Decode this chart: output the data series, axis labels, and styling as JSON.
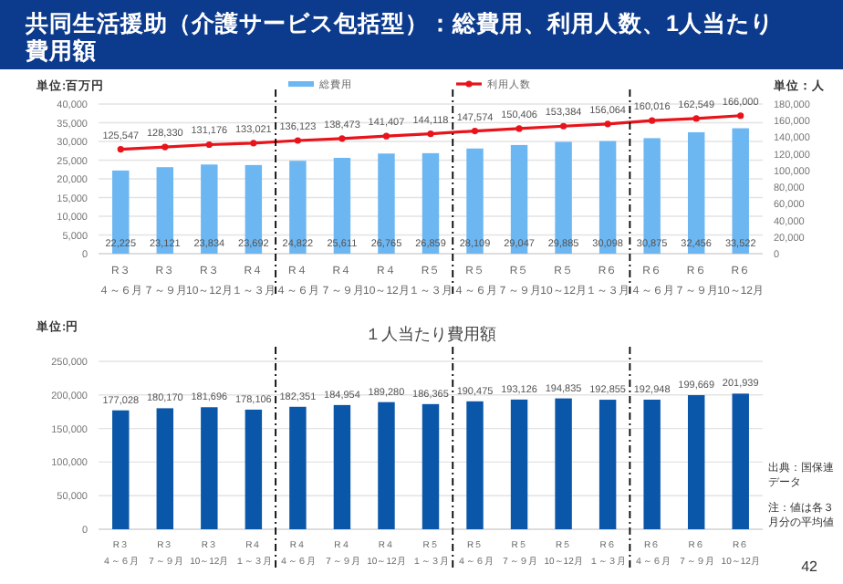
{
  "chart_data": [
    {
      "type": "bar",
      "title": "共同生活援助（介護サービス包括型）：総費用、利用人数、1人当たり費用額",
      "ylabel": "単位:百万円",
      "y2label": "単位：人",
      "categories": [
        "R３４～６月",
        "R３７～９月",
        "R３10～12月",
        "R４１～３月",
        "R４４～６月",
        "R４７～９月",
        "R４10～12月",
        "R５１～３月",
        "R５４～６月",
        "R５７～９月",
        "R５10～12月",
        "R６１～３月",
        "R６４～６月",
        "R６７～９月",
        "R６10～12月"
      ],
      "series": [
        {
          "name": "総費用",
          "color": "#6cb6f2",
          "values": [
            22225,
            23121,
            23834,
            23692,
            24822,
            25611,
            26765,
            26859,
            28109,
            29047,
            29885,
            30098,
            30875,
            32456,
            33522
          ],
          "value_labels": [
            "22,225",
            "23,121",
            "23,834",
            "23,692",
            "24,822",
            "25,611",
            "26,765",
            "26,859",
            "28,109",
            "29,047",
            "29,885",
            "30,098",
            "30,875",
            "32,456",
            "33,522"
          ]
        },
        {
          "name": "利用人数",
          "type": "line",
          "axis": "y2",
          "color": "#e8141b",
          "values": [
            125547,
            128330,
            131176,
            133021,
            136123,
            138473,
            141407,
            144118,
            147574,
            150406,
            153384,
            156064,
            160016,
            162549,
            166000
          ],
          "value_labels": [
            "125,547",
            "128,330",
            "131,176",
            "133,021",
            "136,123",
            "138,473",
            "141,407",
            "144,118",
            "147,574",
            "150,406",
            "153,384",
            "156,064",
            "160,016",
            "162,549",
            "166,000"
          ]
        }
      ],
      "ylim": [
        0,
        40000
      ],
      "yticks": [
        0,
        {
          "value": 5000,
          "label": "5,000"
        },
        {
          "value": 10000,
          "label": "10,000"
        },
        {
          "value": 15000,
          "label": "15,000"
        },
        {
          "value": 20000,
          "label": "20,000"
        },
        {
          "value": 25000,
          "label": "25,000"
        },
        {
          "value": 30000,
          "label": "30,000"
        },
        {
          "value": 35000,
          "label": "35,000"
        },
        {
          "value": 40000,
          "label": "40,000"
        }
      ],
      "y2lim": [
        0,
        180000
      ],
      "y2ticks": [
        0,
        {
          "value": 20000,
          "label": "20,000"
        },
        {
          "value": 40000,
          "label": "40,000"
        },
        {
          "value": 60000,
          "label": "60,000"
        },
        {
          "value": 80000,
          "label": "80,000"
        },
        {
          "value": 100000,
          "label": "100,000"
        },
        {
          "value": 120000,
          "label": "120,000"
        },
        {
          "value": 140000,
          "label": "140,000"
        },
        {
          "value": 160000,
          "label": "160,000"
        },
        {
          "value": 180000,
          "label": "180,000"
        }
      ],
      "grid": "y",
      "legend": "top",
      "marker": "circle"
    },
    {
      "type": "bar",
      "title": "１人当たり費用額",
      "ylabel": "単位:円",
      "categories": [
        "R３４～６月",
        "R３７～９月",
        "R３10～12月",
        "R４１～３月",
        "R４４～６月",
        "R４７～９月",
        "R４10～12月",
        "R５１～３月",
        "R５４～６月",
        "R５７～９月",
        "R５10～12月",
        "R６１～３月",
        "R６４～６月",
        "R６７～９月",
        "R６10～12月"
      ],
      "series": [
        {
          "color": "#0a56a8",
          "values": [
            177028,
            180170,
            181696,
            178106,
            182351,
            184954,
            189280,
            186365,
            190475,
            193126,
            194835,
            192855,
            192948,
            199669,
            201939
          ],
          "value_labels": [
            "177,028",
            "180,170",
            "181,696",
            "178,106",
            "182,351",
            "184,954",
            "189,280",
            "186,365",
            "190,475",
            "193,126",
            "194,835",
            "192,855",
            "192,948",
            "199,669",
            "201,939"
          ]
        }
      ],
      "ylim": [
        0,
        250000
      ],
      "yticks": [
        0,
        {
          "value": 50000,
          "label": "50,000"
        },
        {
          "value": 100000,
          "label": "100,000"
        },
        {
          "value": 150000,
          "label": "150,000"
        },
        {
          "value": 200000,
          "label": "200,000"
        },
        {
          "value": 250000,
          "label": "250,000"
        }
      ],
      "grid": "y",
      "annotations": [
        "出典：国保連データ",
        "注：値は各３月分の平均値",
        "42"
      ]
    }
  ]
}
